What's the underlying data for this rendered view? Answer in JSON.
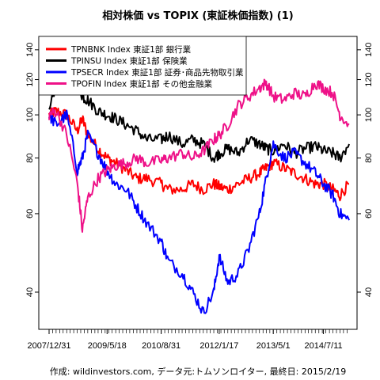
{
  "chart_data": {
    "type": "line",
    "title": "相対株価 vs TOPIX (東証株価指数) (1)",
    "caption": "作成: wildinvestors.com, データ元:トムソンロイター, 最終日: 2015/2/19",
    "x_tick_labels": [
      "2007/12/31",
      "2009/5/18",
      "2010/8/31",
      "2012/1/17",
      "2013/5/1",
      "2014/7/11"
    ],
    "y_tick_values": [
      40,
      60,
      80,
      100,
      120,
      140
    ],
    "y_scale": "log",
    "ylim": [
      33,
      150
    ],
    "legend_position": "top-left",
    "grid": false,
    "x": [
      "2007/12/31",
      "2008/3/1",
      "2008/6/1",
      "2008/9/1",
      "2008/10/15",
      "2008/12/1",
      "2009/3/1",
      "2009/5/18",
      "2009/8/1",
      "2009/11/1",
      "2010/2/1",
      "2010/5/1",
      "2010/8/31",
      "2010/11/1",
      "2011/3/1",
      "2011/6/1",
      "2011/9/1",
      "2011/12/1",
      "2012/1/17",
      "2012/4/1",
      "2012/7/1",
      "2012/10/1",
      "2013/1/1",
      "2013/3/1",
      "2013/5/1",
      "2013/8/1",
      "2013/11/1",
      "2014/2/1",
      "2014/5/1",
      "2014/7/11",
      "2014/10/1",
      "2014/12/1",
      "2015/2/19"
    ],
    "series": [
      {
        "name": "TPNBNK Index 東証1部 銀行業",
        "color": "#ff0000",
        "values": [
          100,
          102,
          100,
          92,
          98,
          90,
          84,
          80,
          78,
          75,
          72,
          72,
          70,
          68,
          68,
          70,
          68,
          70,
          69,
          68,
          70,
          72,
          74,
          76,
          78,
          76,
          74,
          72,
          70,
          70,
          68,
          66,
          70
        ]
      },
      {
        "name": "TPINSU Index 東証1部 保険業",
        "color": "#000000",
        "values": [
          100,
          118,
          124,
          120,
          110,
          108,
          102,
          100,
          98,
          95,
          92,
          88,
          88,
          90,
          86,
          88,
          86,
          80,
          82,
          84,
          82,
          88,
          86,
          84,
          83,
          86,
          82,
          84,
          85,
          83,
          82,
          80,
          86
        ]
      },
      {
        "name": "TPSECR Index 東証1部 証券･商品先物取引業",
        "color": "#0000ff",
        "values": [
          100,
          95,
          100,
          75,
          80,
          90,
          82,
          75,
          70,
          68,
          62,
          57,
          52,
          47,
          44,
          40,
          36,
          40,
          48,
          42,
          44,
          50,
          60,
          72,
          86,
          80,
          82,
          78,
          74,
          70,
          66,
          60,
          58
        ]
      },
      {
        "name": "TPOFIN Index 東証1部 その他金融業",
        "color": "#ee1188",
        "values": [
          100,
          102,
          90,
          70,
          55,
          65,
          72,
          75,
          77,
          78,
          80,
          78,
          79,
          80,
          82,
          80,
          83,
          88,
          90,
          95,
          105,
          110,
          115,
          118,
          110,
          108,
          112,
          110,
          118,
          115,
          112,
          100,
          95
        ]
      }
    ]
  }
}
